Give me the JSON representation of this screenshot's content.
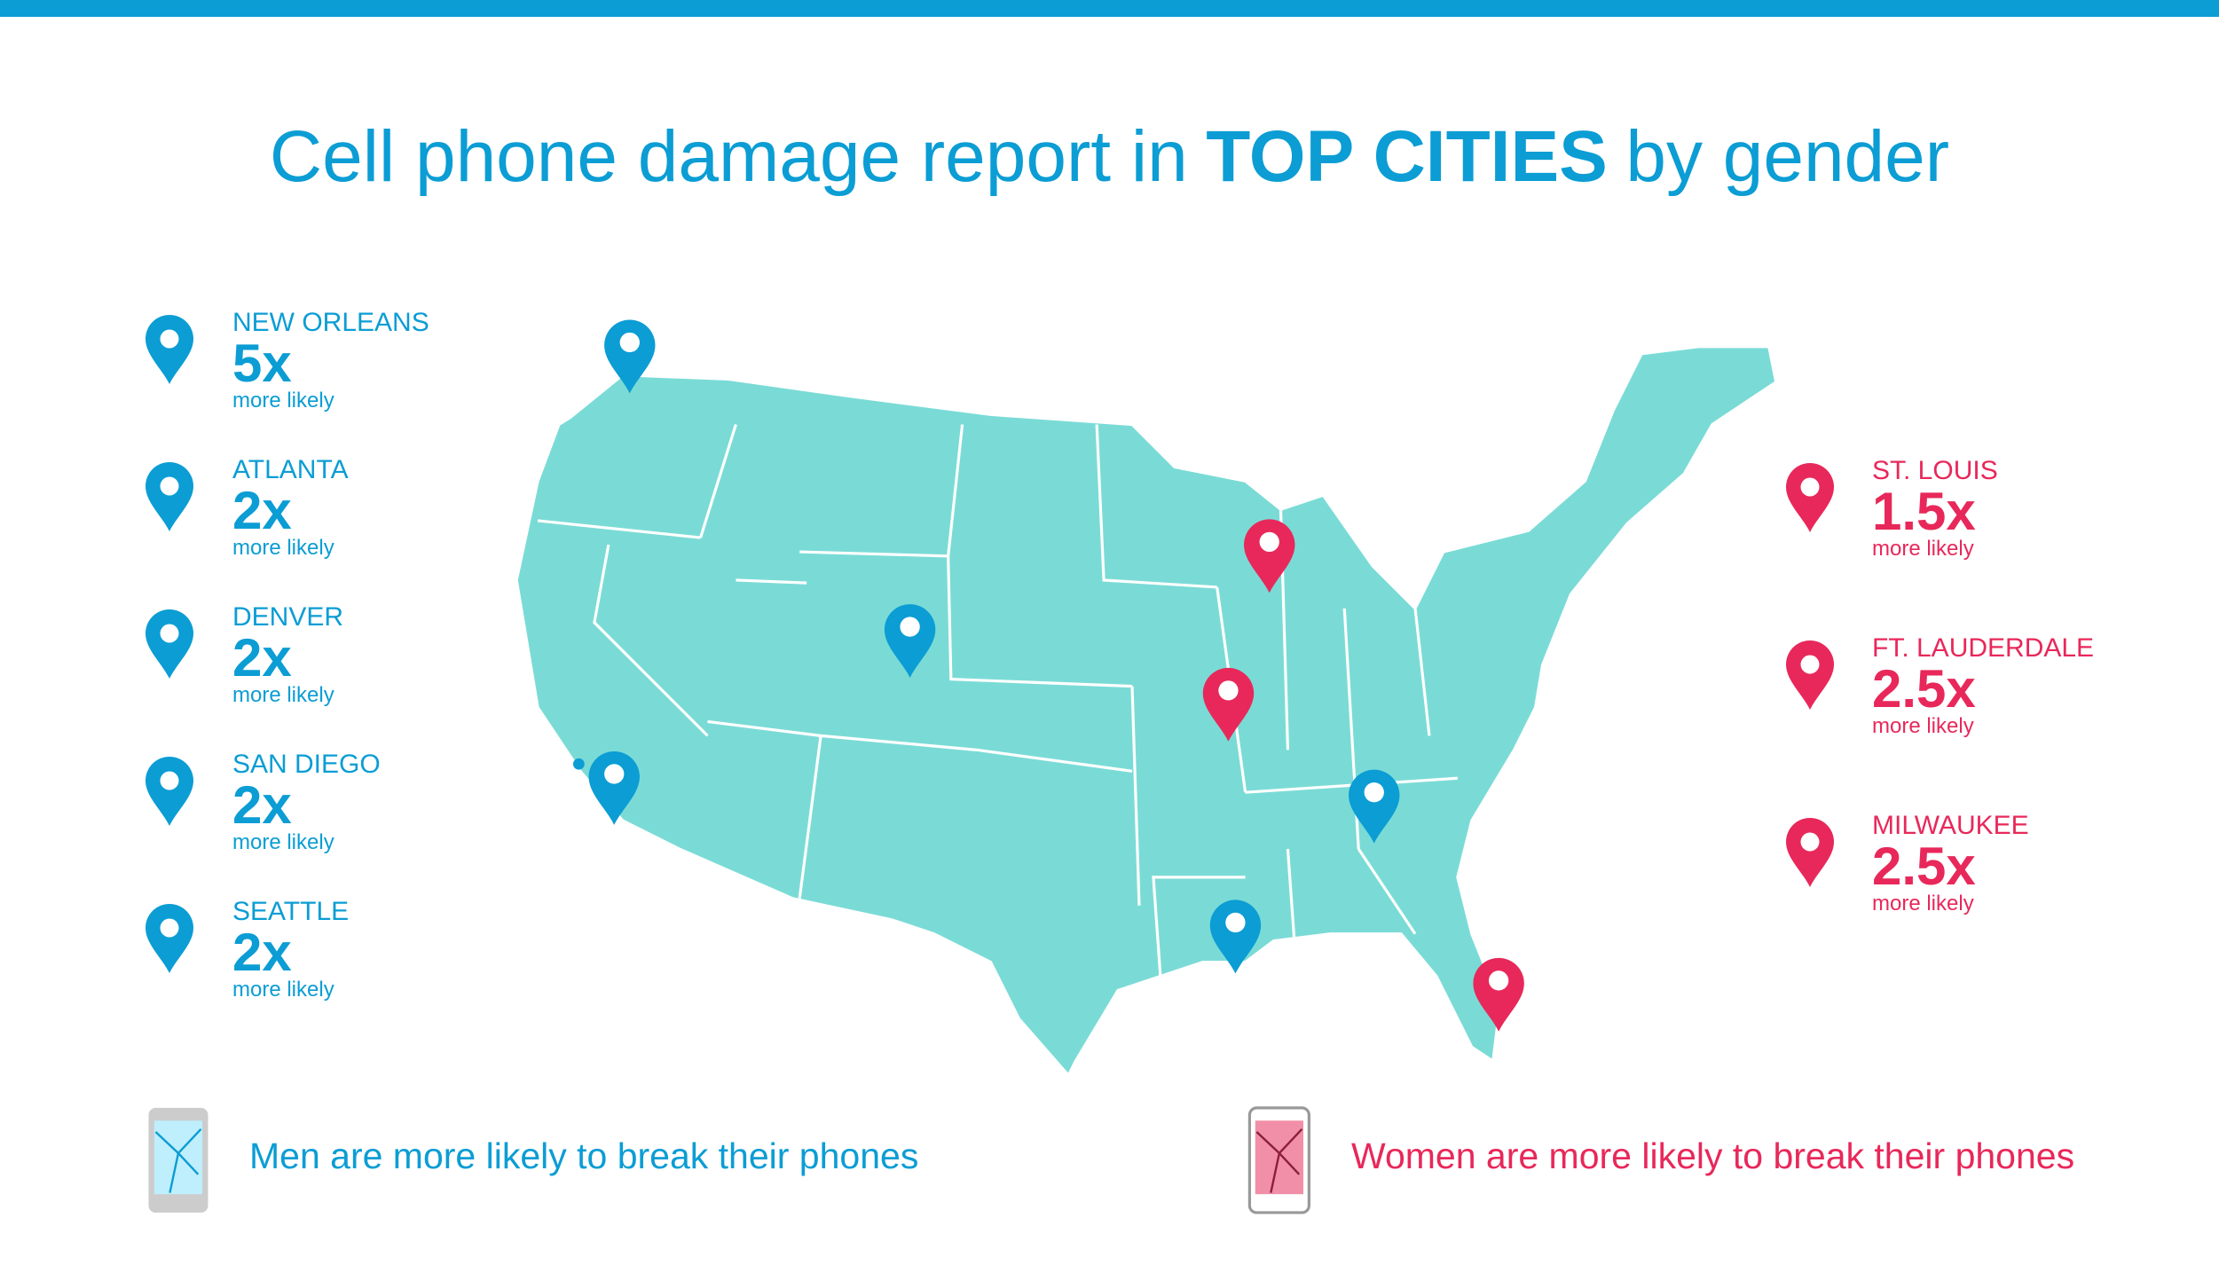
{
  "header": {
    "title": {
      "prefix": "Cell phone damage report in",
      "emphasis": "TOP CITIES",
      "suffix": "by gender"
    }
  },
  "men": [
    {
      "city": "NEW ORLEANS",
      "multiplier": "5x",
      "note": "more likely"
    },
    {
      "city": "ATLANTA",
      "multiplier": "2x",
      "note": "more likely"
    },
    {
      "city": "DENVER",
      "multiplier": "2x",
      "note": "more likely"
    },
    {
      "city": "SAN DIEGO",
      "multiplier": "2x",
      "note": "more likely"
    },
    {
      "city": "SEATTLE",
      "multiplier": "2x",
      "note": "more likely"
    }
  ],
  "women": [
    {
      "city": "ST. LOUIS",
      "multiplier": "1.5x",
      "note": "more likely"
    },
    {
      "city": "FT. LAUDERDALE",
      "multiplier": "2.5x",
      "note": "more likely"
    },
    {
      "city": "MILWAUKEE",
      "multiplier": "2.5x",
      "note": "more likely"
    }
  ],
  "legend": {
    "men": "Men are more likely to break their phones",
    "women": "Women are more likely to break their phones"
  }
}
